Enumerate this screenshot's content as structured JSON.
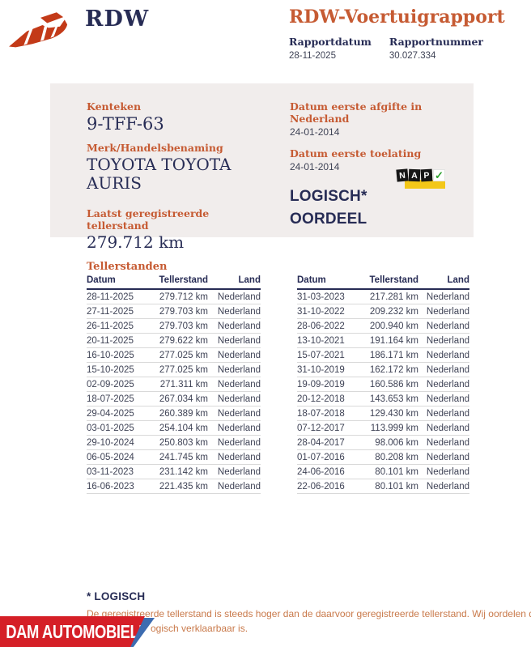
{
  "header": {
    "brand": "RDW",
    "title": "RDW-Voertuigrapport",
    "report_date_label": "Rapportdatum",
    "report_date": "28-11-2025",
    "report_number_label": "Rapportnummer",
    "report_number": "30.027.334"
  },
  "vehicle": {
    "kenteken_label": "Kenteken",
    "kenteken": "9-TFF-63",
    "merk_label": "Merk/Handelsbenaming",
    "merk": "TOYOTA TOYOTA AURIS",
    "laatste_tellerstand_label": "Laatst geregistreerde tellerstand",
    "laatste_tellerstand": "279.712 km",
    "afgifte_label": "Datum eerste afgifte in Nederland",
    "afgifte_datum": "24-01-2014",
    "toelating_label": "Datum eerste toelating",
    "toelating_datum": "24-01-2014",
    "verdict_line1": "LOGISCH*",
    "verdict_line2": "OORDEEL",
    "nap_letters": [
      "N",
      "A",
      "P"
    ],
    "nap_check": "✓"
  },
  "tellerstanden": {
    "title": "Tellerstanden",
    "columns": [
      "Datum",
      "Tellerstand",
      "Land"
    ],
    "left_rows": [
      [
        "28-11-2025",
        "279.712 km",
        "Nederland"
      ],
      [
        "27-11-2025",
        "279.703 km",
        "Nederland"
      ],
      [
        "26-11-2025",
        "279.703 km",
        "Nederland"
      ],
      [
        "20-11-2025",
        "279.622 km",
        "Nederland"
      ],
      [
        "16-10-2025",
        "277.025 km",
        "Nederland"
      ],
      [
        "15-10-2025",
        "277.025 km",
        "Nederland"
      ],
      [
        "02-09-2025",
        "271.311 km",
        "Nederland"
      ],
      [
        "18-07-2025",
        "267.034 km",
        "Nederland"
      ],
      [
        "29-04-2025",
        "260.389 km",
        "Nederland"
      ],
      [
        "03-01-2025",
        "254.104 km",
        "Nederland"
      ],
      [
        "29-10-2024",
        "250.803 km",
        "Nederland"
      ],
      [
        "06-05-2024",
        "241.745 km",
        "Nederland"
      ],
      [
        "03-11-2023",
        "231.142 km",
        "Nederland"
      ],
      [
        "16-06-2023",
        "221.435 km",
        "Nederland"
      ]
    ],
    "right_rows": [
      [
        "31-03-2023",
        "217.281 km",
        "Nederland"
      ],
      [
        "31-10-2022",
        "209.232 km",
        "Nederland"
      ],
      [
        "28-06-2022",
        "200.940 km",
        "Nederland"
      ],
      [
        "13-10-2021",
        "191.164 km",
        "Nederland"
      ],
      [
        "15-07-2021",
        "186.171 km",
        "Nederland"
      ],
      [
        "31-10-2019",
        "162.172 km",
        "Nederland"
      ],
      [
        "19-09-2019",
        "160.586 km",
        "Nederland"
      ],
      [
        "20-12-2018",
        "143.653 km",
        "Nederland"
      ],
      [
        "18-07-2018",
        "129.430 km",
        "Nederland"
      ],
      [
        "07-12-2017",
        "113.999 km",
        "Nederland"
      ],
      [
        "28-04-2017",
        "98.006 km",
        "Nederland"
      ],
      [
        "01-07-2016",
        "80.208 km",
        "Nederland"
      ],
      [
        "24-06-2016",
        "80.101 km",
        "Nederland"
      ],
      [
        "22-06-2016",
        "80.101 km",
        "Nederland"
      ]
    ]
  },
  "footnote": {
    "title": "* LOGISCH",
    "line1": "De geregistreerde tellerstand is steeds hoger dan de daarvoor geregistreerde tellerstand. Wij oordelen dan",
    "line2": "ogisch verklaarbaar is."
  },
  "banner": {
    "text": "DAM AUTOMOBIELEN"
  },
  "colors": {
    "navy": "#272c55",
    "orange_accent": "#c65b33",
    "body_orange": "#c97a4b",
    "panel_bg": "#f1edec",
    "logo_red": "#c33a18",
    "banner_red": "#d51f27",
    "banner_blue": "#3d6cb0",
    "nap_yellow": "#f3c718",
    "nap_green": "#2fa12f"
  }
}
